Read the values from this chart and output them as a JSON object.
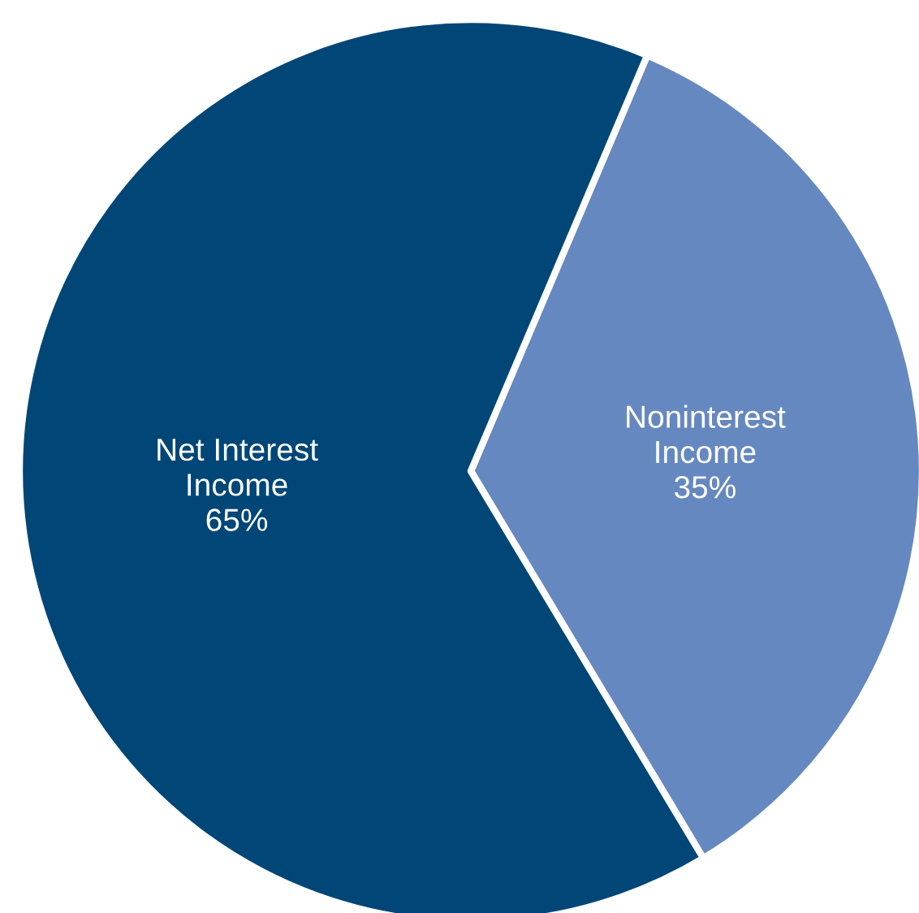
{
  "chart_data": {
    "type": "pie",
    "categories": [
      "Noninterest\nIncome",
      "Net Interest\nIncome"
    ],
    "values": [
      35,
      65
    ],
    "value_labels": [
      "35%",
      "65%"
    ],
    "colors": [
      "#6688c0",
      "#004677"
    ],
    "legend": false
  }
}
